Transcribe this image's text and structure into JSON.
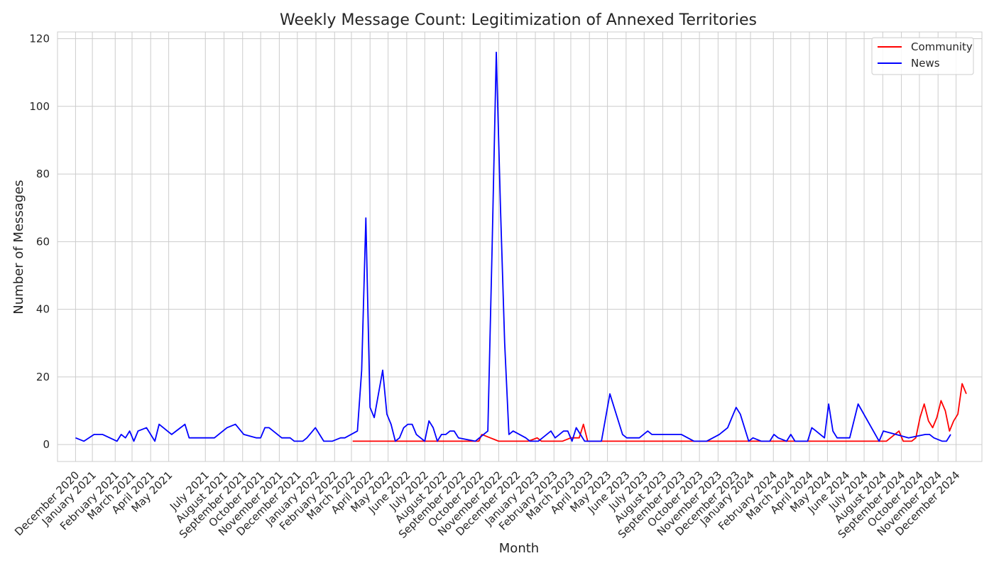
{
  "chart_data": {
    "type": "line",
    "title": "Weekly Message Count: Legitimization of Annexed Territories",
    "xlabel": "Month",
    "ylabel": "Number of Messages",
    "ylim": [
      -5,
      122
    ],
    "yticks": [
      0,
      20,
      40,
      60,
      80,
      100,
      120
    ],
    "xlim": [
      "2020-11-01",
      "2025-01-17"
    ],
    "grid": true,
    "legend_position": "top-right",
    "x_ticks": [
      {
        "date": "2020-12-01",
        "label": "December 2020"
      },
      {
        "date": "2020-12-29",
        "label": "January 2021"
      },
      {
        "date": "2021-02-05",
        "label": "February 2021"
      },
      {
        "date": "2021-03-05",
        "label": "March 2021"
      },
      {
        "date": "2021-04-05",
        "label": "April 2021"
      },
      {
        "date": "2021-05-05",
        "label": "May 2021"
      },
      {
        "date": "2021-07-05",
        "label": "July 2021"
      },
      {
        "date": "2021-08-05",
        "label": "August 2021"
      },
      {
        "date": "2021-09-05",
        "label": "September 2021"
      },
      {
        "date": "2021-10-05",
        "label": "October 2021"
      },
      {
        "date": "2021-11-05",
        "label": "November 2021"
      },
      {
        "date": "2021-12-05",
        "label": "December 2021"
      },
      {
        "date": "2022-01-05",
        "label": "January 2022"
      },
      {
        "date": "2022-02-05",
        "label": "February 2022"
      },
      {
        "date": "2022-03-05",
        "label": "March 2022"
      },
      {
        "date": "2022-04-05",
        "label": "April 2022"
      },
      {
        "date": "2022-05-05",
        "label": "May 2022"
      },
      {
        "date": "2022-06-05",
        "label": "June 2022"
      },
      {
        "date": "2022-07-05",
        "label": "July 2022"
      },
      {
        "date": "2022-08-05",
        "label": "August 2022"
      },
      {
        "date": "2022-09-05",
        "label": "September 2022"
      },
      {
        "date": "2022-10-05",
        "label": "October 2022"
      },
      {
        "date": "2022-11-05",
        "label": "November 2022"
      },
      {
        "date": "2022-12-05",
        "label": "December 2022"
      },
      {
        "date": "2023-01-05",
        "label": "January 2023"
      },
      {
        "date": "2023-02-05",
        "label": "February 2023"
      },
      {
        "date": "2023-03-05",
        "label": "March 2023"
      },
      {
        "date": "2023-04-05",
        "label": "April 2023"
      },
      {
        "date": "2023-05-05",
        "label": "May 2023"
      },
      {
        "date": "2023-06-05",
        "label": "June 2023"
      },
      {
        "date": "2023-07-05",
        "label": "July 2023"
      },
      {
        "date": "2023-08-05",
        "label": "August 2023"
      },
      {
        "date": "2023-09-05",
        "label": "September 2023"
      },
      {
        "date": "2023-10-05",
        "label": "October 2023"
      },
      {
        "date": "2023-11-05",
        "label": "November 2023"
      },
      {
        "date": "2023-12-05",
        "label": "December 2023"
      },
      {
        "date": "2023-12-29",
        "label": "January 2024"
      },
      {
        "date": "2024-02-05",
        "label": "February 2024"
      },
      {
        "date": "2024-03-05",
        "label": "March 2024"
      },
      {
        "date": "2024-04-05",
        "label": "April 2024"
      },
      {
        "date": "2024-05-05",
        "label": "May 2024"
      },
      {
        "date": "2024-06-05",
        "label": "June 2024"
      },
      {
        "date": "2024-07-05",
        "label": "July 2024"
      },
      {
        "date": "2024-08-05",
        "label": "August 2024"
      },
      {
        "date": "2024-09-05",
        "label": "September 2024"
      },
      {
        "date": "2024-10-05",
        "label": "October 2024"
      },
      {
        "date": "2024-11-05",
        "label": "November 2024"
      },
      {
        "date": "2024-12-05",
        "label": "December 2024"
      }
    ],
    "series": [
      {
        "name": "Community",
        "color": "#ff0000",
        "points": [
          [
            "2022-03-07",
            1
          ],
          [
            "2022-04-04",
            1
          ],
          [
            "2022-05-02",
            1
          ],
          [
            "2022-06-06",
            1
          ],
          [
            "2022-07-04",
            1
          ],
          [
            "2022-08-01",
            1
          ],
          [
            "2022-09-05",
            1
          ],
          [
            "2022-10-03",
            1
          ],
          [
            "2022-10-08",
            3
          ],
          [
            "2022-10-15",
            2.5
          ],
          [
            "2022-10-22",
            2
          ],
          [
            "2022-10-29",
            1.5
          ],
          [
            "2022-11-05",
            1
          ],
          [
            "2022-12-03",
            1
          ],
          [
            "2022-12-24",
            1
          ],
          [
            "2023-01-01",
            1.5
          ],
          [
            "2023-01-08",
            2
          ],
          [
            "2023-01-15",
            1
          ],
          [
            "2023-02-05",
            1
          ],
          [
            "2023-02-19",
            1
          ],
          [
            "2023-03-05",
            2
          ],
          [
            "2023-03-19",
            2
          ],
          [
            "2023-03-26",
            6
          ],
          [
            "2023-04-02",
            1
          ],
          [
            "2023-05-07",
            1
          ],
          [
            "2023-06-04",
            1
          ],
          [
            "2023-07-02",
            1
          ],
          [
            "2023-08-06",
            1
          ],
          [
            "2023-09-03",
            1
          ],
          [
            "2023-10-01",
            1
          ],
          [
            "2023-11-05",
            1
          ],
          [
            "2023-12-03",
            1
          ],
          [
            "2024-01-07",
            1
          ],
          [
            "2024-02-04",
            1
          ],
          [
            "2024-03-03",
            1
          ],
          [
            "2024-04-07",
            1
          ],
          [
            "2024-05-05",
            1
          ],
          [
            "2024-06-02",
            1
          ],
          [
            "2024-07-07",
            1
          ],
          [
            "2024-08-11",
            1
          ],
          [
            "2024-08-25",
            3
          ],
          [
            "2024-09-01",
            4
          ],
          [
            "2024-09-08",
            1
          ],
          [
            "2024-09-22",
            1
          ],
          [
            "2024-09-29",
            2
          ],
          [
            "2024-10-06",
            8
          ],
          [
            "2024-10-13",
            12
          ],
          [
            "2024-10-20",
            7
          ],
          [
            "2024-10-27",
            5
          ],
          [
            "2024-11-03",
            8
          ],
          [
            "2024-11-10",
            13
          ],
          [
            "2024-11-17",
            10
          ],
          [
            "2024-11-24",
            4
          ],
          [
            "2024-12-01",
            7
          ],
          [
            "2024-12-08",
            9
          ],
          [
            "2024-12-15",
            18
          ],
          [
            "2024-12-22",
            15
          ]
        ]
      },
      {
        "name": "News",
        "color": "#0000ff",
        "points": [
          [
            "2020-12-01",
            2
          ],
          [
            "2020-12-15",
            1
          ],
          [
            "2021-01-01",
            3
          ],
          [
            "2021-01-15",
            3
          ],
          [
            "2021-02-08",
            1
          ],
          [
            "2021-02-15",
            3
          ],
          [
            "2021-02-22",
            2
          ],
          [
            "2021-03-01",
            4
          ],
          [
            "2021-03-08",
            1
          ],
          [
            "2021-03-15",
            4
          ],
          [
            "2021-03-29",
            5
          ],
          [
            "2021-04-12",
            1
          ],
          [
            "2021-04-19",
            6
          ],
          [
            "2021-05-10",
            3
          ],
          [
            "2021-06-01",
            6
          ],
          [
            "2021-06-08",
            2
          ],
          [
            "2021-07-06",
            2
          ],
          [
            "2021-07-20",
            2
          ],
          [
            "2021-08-10",
            5
          ],
          [
            "2021-08-24",
            6
          ],
          [
            "2021-09-07",
            3
          ],
          [
            "2021-09-28",
            2
          ],
          [
            "2021-10-05",
            2
          ],
          [
            "2021-10-12",
            5
          ],
          [
            "2021-10-19",
            5
          ],
          [
            "2021-11-09",
            2
          ],
          [
            "2021-11-23",
            2
          ],
          [
            "2021-11-30",
            1
          ],
          [
            "2021-12-14",
            1
          ],
          [
            "2021-12-21",
            2
          ],
          [
            "2022-01-04",
            5
          ],
          [
            "2022-01-18",
            1
          ],
          [
            "2022-02-01",
            1
          ],
          [
            "2022-02-15",
            2
          ],
          [
            "2022-02-22",
            2
          ],
          [
            "2022-03-15",
            4
          ],
          [
            "2022-03-22",
            22
          ],
          [
            "2022-03-29",
            67
          ],
          [
            "2022-04-05",
            11
          ],
          [
            "2022-04-12",
            8
          ],
          [
            "2022-04-26",
            22
          ],
          [
            "2022-05-03",
            9
          ],
          [
            "2022-05-10",
            6
          ],
          [
            "2022-05-17",
            1
          ],
          [
            "2022-05-24",
            2
          ],
          [
            "2022-05-31",
            5
          ],
          [
            "2022-06-07",
            6
          ],
          [
            "2022-06-14",
            6
          ],
          [
            "2022-06-21",
            3
          ],
          [
            "2022-07-05",
            1
          ],
          [
            "2022-07-12",
            7
          ],
          [
            "2022-07-19",
            5
          ],
          [
            "2022-07-26",
            1
          ],
          [
            "2022-08-02",
            3
          ],
          [
            "2022-08-09",
            3
          ],
          [
            "2022-08-16",
            4
          ],
          [
            "2022-08-23",
            4
          ],
          [
            "2022-08-30",
            2
          ],
          [
            "2022-09-27",
            1
          ],
          [
            "2022-10-18",
            4
          ],
          [
            "2022-10-25",
            58
          ],
          [
            "2022-11-01",
            116
          ],
          [
            "2022-11-08",
            70
          ],
          [
            "2022-11-15",
            30
          ],
          [
            "2022-11-22",
            3
          ],
          [
            "2022-11-29",
            4
          ],
          [
            "2022-12-20",
            2
          ],
          [
            "2022-12-27",
            1
          ],
          [
            "2023-01-10",
            1
          ],
          [
            "2023-01-31",
            4
          ],
          [
            "2023-02-07",
            2
          ],
          [
            "2023-02-14",
            3
          ],
          [
            "2023-02-21",
            4
          ],
          [
            "2023-02-28",
            4
          ],
          [
            "2023-03-07",
            1
          ],
          [
            "2023-03-14",
            5
          ],
          [
            "2023-03-28",
            1
          ],
          [
            "2023-04-25",
            1
          ],
          [
            "2023-05-09",
            15
          ],
          [
            "2023-05-30",
            3
          ],
          [
            "2023-06-06",
            2
          ],
          [
            "2023-06-27",
            2
          ],
          [
            "2023-07-11",
            4
          ],
          [
            "2023-07-18",
            3
          ],
          [
            "2023-08-22",
            3
          ],
          [
            "2023-09-05",
            3
          ],
          [
            "2023-09-26",
            1
          ],
          [
            "2023-10-17",
            1
          ],
          [
            "2023-11-07",
            3
          ],
          [
            "2023-11-21",
            5
          ],
          [
            "2023-11-28",
            8
          ],
          [
            "2023-12-05",
            11
          ],
          [
            "2023-12-12",
            9
          ],
          [
            "2023-12-26",
            1
          ],
          [
            "2024-01-02",
            2
          ],
          [
            "2024-01-16",
            1
          ],
          [
            "2024-01-30",
            1
          ],
          [
            "2024-02-06",
            3
          ],
          [
            "2024-02-13",
            2
          ],
          [
            "2024-02-27",
            1
          ],
          [
            "2024-03-05",
            3
          ],
          [
            "2024-03-12",
            1
          ],
          [
            "2024-04-02",
            1
          ],
          [
            "2024-04-09",
            5
          ],
          [
            "2024-04-16",
            4
          ],
          [
            "2024-04-23",
            3
          ],
          [
            "2024-04-30",
            2
          ],
          [
            "2024-05-07",
            12
          ],
          [
            "2024-05-14",
            4
          ],
          [
            "2024-05-21",
            2
          ],
          [
            "2024-06-11",
            2
          ],
          [
            "2024-06-25",
            12
          ],
          [
            "2024-07-30",
            1
          ],
          [
            "2024-08-06",
            4
          ],
          [
            "2024-09-17",
            2
          ],
          [
            "2024-10-15",
            3
          ],
          [
            "2024-10-22",
            3
          ],
          [
            "2024-10-29",
            2
          ],
          [
            "2024-11-12",
            1
          ],
          [
            "2024-11-19",
            1
          ],
          [
            "2024-11-26",
            3
          ]
        ]
      }
    ]
  }
}
